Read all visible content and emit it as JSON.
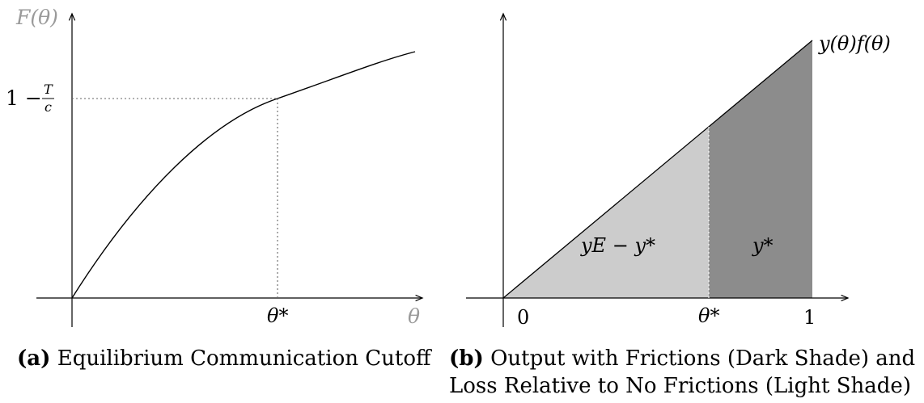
{
  "panel_a": {
    "y_axis_label": "F(θ)",
    "x_axis_label": "θ",
    "y_tick_prefix": "1 −",
    "y_tick_num": "T",
    "y_tick_den": "c",
    "x_tick_label": "θ*",
    "caption_tag": "(a)",
    "caption_text": "Equilibrium Communication Cutoff"
  },
  "panel_b": {
    "curve_label": "y(θ)f(θ)",
    "light_region_label": "yE − y*",
    "dark_region_label": "y*",
    "x_tick_0": "0",
    "x_tick_theta": "θ*",
    "x_tick_1": "1",
    "caption_tag": "(b)",
    "caption_line1": "Output with Frictions (Dark Shade) and",
    "caption_line2": "Loss Relative to No Frictions (Light Shade)",
    "colors": {
      "light_shade": "#cccccc",
      "dark_shade": "#8c8c8c"
    }
  }
}
